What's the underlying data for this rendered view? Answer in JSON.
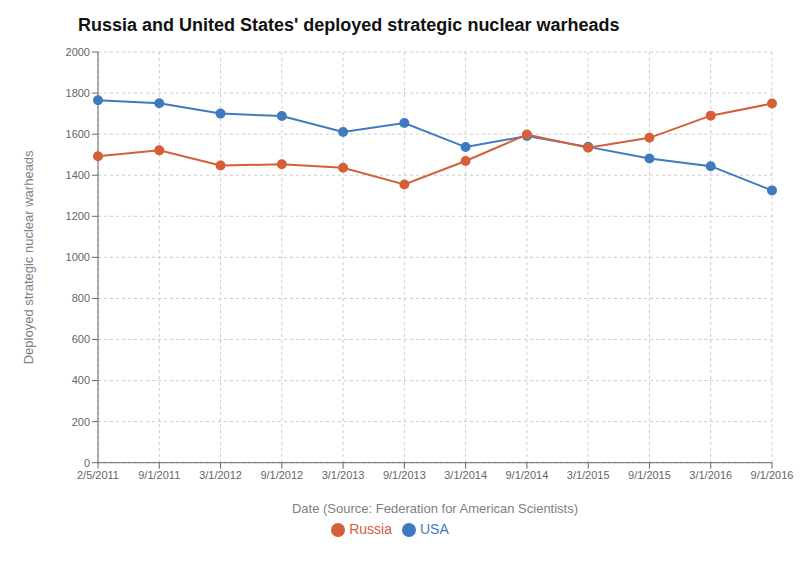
{
  "chart_data": {
    "type": "line",
    "title": "Russia and United States' deployed strategic nuclear warheads",
    "x_label": "Date (Source: Federation for American Scientists)",
    "y_label": "Deployed strategic nuclear warheads",
    "categories": [
      "2/5/2011",
      "9/1/2011",
      "3/1/2012",
      "9/1/2012",
      "3/1/2013",
      "9/1/2013",
      "3/1/2014",
      "9/1/2014",
      "3/1/2015",
      "9/1/2015",
      "3/1/2016",
      "9/1/2016"
    ],
    "series": [
      {
        "name": "USA",
        "color": "#3e7abf",
        "marker": "circle",
        "values": [
          1765,
          1750,
          1700,
          1688,
          1610,
          1654,
          1537,
          1591,
          1538,
          1481,
          1444,
          1326
        ]
      },
      {
        "name": "Russia",
        "color": "#d45f38",
        "marker": "circle",
        "values": [
          1492,
          1521,
          1447,
          1453,
          1436,
          1355,
          1469,
          1598,
          1534,
          1582,
          1690,
          1749
        ]
      }
    ],
    "ylim": [
      0,
      2000
    ],
    "yticks": [
      0,
      200,
      400,
      600,
      800,
      1000,
      1200,
      1400,
      1600,
      1800,
      2000
    ],
    "grid": true,
    "legend": "bottom"
  }
}
